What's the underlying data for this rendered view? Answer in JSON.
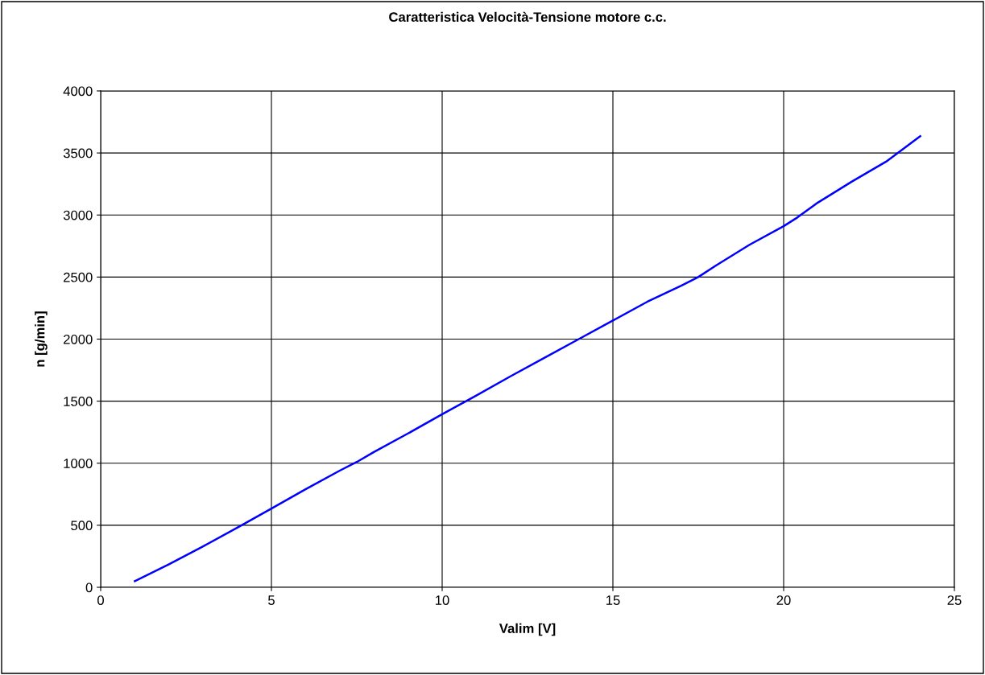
{
  "chart_data": {
    "type": "line",
    "title": "Caratteristica Velocità-Tensione motore c.c.",
    "xlabel": "Valim [V]",
    "ylabel": "n [g/min]",
    "series": [
      {
        "color": "#0000ff",
        "x": [
          1,
          2,
          3,
          4,
          5,
          6,
          7,
          7.5,
          8,
          9,
          10,
          10.7,
          11,
          12,
          13,
          14,
          15,
          16,
          17,
          17.5,
          18,
          19,
          20,
          20.4,
          21,
          22,
          23,
          24
        ],
        "values": [
          50,
          185,
          330,
          480,
          635,
          790,
          940,
          1010,
          1090,
          1240,
          1395,
          1500,
          1545,
          1700,
          1850,
          2000,
          2150,
          2300,
          2430,
          2500,
          2590,
          2760,
          2910,
          2980,
          3100,
          3270,
          3430,
          3635
        ]
      }
    ],
    "xlim": [
      0,
      25
    ],
    "xticks": [
      0,
      5,
      10,
      15,
      20,
      25
    ],
    "ylim": [
      0,
      4000
    ],
    "yticks": [
      0,
      500,
      1000,
      1500,
      2000,
      2500,
      3000,
      3500,
      4000
    ],
    "grid": true,
    "marker": "none",
    "line_style": "solid"
  }
}
